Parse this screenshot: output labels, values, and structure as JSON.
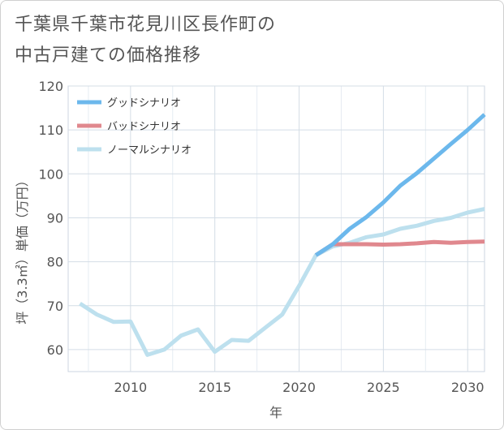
{
  "chart_data": {
    "type": "line",
    "title_lines": [
      "千葉県千葉市花見川区長作町の",
      "中古戸建ての価格推移"
    ],
    "xlabel": "年",
    "ylabel": "坪（3.3㎡）単価（万円）",
    "xlim": [
      2006.3,
      2031
    ],
    "ylim": [
      55,
      120
    ],
    "x_ticks": [
      2010,
      2015,
      2020,
      2025,
      2030
    ],
    "y_ticks": [
      60,
      70,
      80,
      90,
      100,
      110,
      120
    ],
    "x_minor_ticks": [
      2007.5,
      2012.5,
      2017.5,
      2022.5,
      2027.5
    ],
    "grid": true,
    "legend_position": "top-left",
    "series": [
      {
        "name": "グッドシナリオ",
        "color": "#6cb8ec",
        "x": [
          2021,
          2022,
          2023,
          2024,
          2025,
          2026,
          2027,
          2028,
          2029,
          2030,
          2031
        ],
        "values": [
          81.5,
          84.0,
          87.5,
          90.2,
          93.5,
          97.3,
          100.2,
          103.5,
          106.8,
          110.0,
          113.5
        ]
      },
      {
        "name": "バッドシナリオ",
        "color": "#e0888e",
        "x": [
          2021,
          2022,
          2023,
          2024,
          2025,
          2026,
          2027,
          2028,
          2029,
          2030,
          2031
        ],
        "values": [
          81.5,
          84.0,
          84.0,
          84.0,
          83.9,
          84.0,
          84.2,
          84.5,
          84.3,
          84.5,
          84.6
        ]
      },
      {
        "name": "ノーマルシナリオ",
        "color": "#bde0ee",
        "x": [
          2007,
          2008,
          2009,
          2010,
          2011,
          2012,
          2013,
          2014,
          2015,
          2016,
          2017,
          2018,
          2019,
          2020,
          2021,
          2022,
          2023,
          2024,
          2025,
          2026,
          2027,
          2028,
          2029,
          2030,
          2031
        ],
        "values": [
          70.5,
          68.0,
          66.3,
          66.4,
          58.8,
          60.0,
          63.2,
          64.6,
          59.5,
          62.2,
          62.0,
          65.0,
          68.0,
          74.5,
          81.5,
          83.5,
          84.3,
          85.6,
          86.2,
          87.5,
          88.2,
          89.3,
          90.0,
          91.2,
          92.0
        ]
      }
    ]
  }
}
